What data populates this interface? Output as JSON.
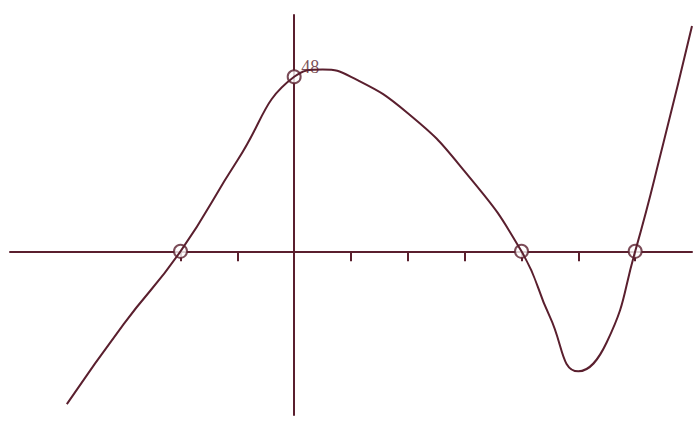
{
  "chart_data": {
    "type": "line",
    "x": [
      -4,
      -3,
      -2,
      -1,
      0,
      0.5,
      1,
      2,
      3,
      4,
      4.5,
      5,
      5.5,
      6,
      6.5,
      7
    ],
    "values": [
      -42,
      -20,
      0,
      25,
      48,
      50,
      48,
      38,
      22,
      0,
      -18,
      -33,
      -25,
      0,
      30,
      62
    ],
    "color": "#5a1f2e",
    "marker": "none",
    "line_style": "solid",
    "points": {
      "x": [
        -2,
        0,
        4,
        6
      ],
      "y": [
        0,
        48,
        0,
        0
      ],
      "marker": "circle"
    },
    "annotations": [
      {
        "text": "48",
        "x": 0,
        "y": 48
      }
    ],
    "xlim": [
      -5,
      7
    ],
    "xticks": [
      -2,
      -1,
      0,
      1,
      2,
      3,
      4,
      5,
      6
    ],
    "ylim": [
      -45,
      65
    ],
    "grid": false,
    "tick_labels": false
  }
}
